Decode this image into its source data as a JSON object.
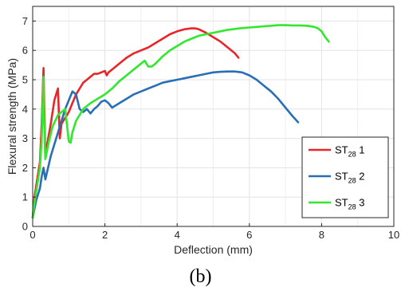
{
  "chart_data": {
    "type": "line",
    "xlabel": "Deflection (mm)",
    "ylabel": "Flexural strength (MPa)",
    "xlim": [
      0,
      10
    ],
    "ylim": [
      0,
      7.5
    ],
    "xticks": [
      "0",
      "2",
      "4",
      "6",
      "8",
      "10"
    ],
    "yticks": [
      "0",
      "1",
      "2",
      "3",
      "4",
      "5",
      "6",
      "7"
    ],
    "grid": true,
    "legend_position": "right",
    "caption": "(b)",
    "series": [
      {
        "name": "ST28 1",
        "name_main": "ST",
        "name_sub": "28",
        "name_suffix": " 1",
        "color": "#e8262a",
        "x": [
          0,
          0.05,
          0.1,
          0.15,
          0.2,
          0.25,
          0.3,
          0.32,
          0.35,
          0.4,
          0.5,
          0.6,
          0.7,
          0.75,
          0.8,
          0.9,
          1.0,
          1.1,
          1.2,
          1.3,
          1.4,
          1.5,
          1.6,
          1.7,
          1.8,
          1.9,
          2.0,
          2.05,
          2.1,
          2.2,
          2.4,
          2.6,
          2.8,
          3.0,
          3.2,
          3.4,
          3.6,
          3.8,
          4.0,
          4.2,
          4.4,
          4.5,
          4.6,
          4.8,
          5.0,
          5.2,
          5.4,
          5.6,
          5.7
        ],
        "y": [
          0.3,
          1.0,
          1.4,
          1.8,
          2.2,
          3.5,
          5.4,
          4.2,
          2.3,
          2.8,
          3.5,
          4.3,
          4.7,
          3.0,
          3.5,
          3.7,
          3.9,
          4.2,
          4.5,
          4.7,
          4.9,
          5.0,
          5.1,
          5.2,
          5.2,
          5.25,
          5.3,
          5.15,
          5.25,
          5.35,
          5.55,
          5.75,
          5.9,
          6.0,
          6.1,
          6.25,
          6.4,
          6.55,
          6.65,
          6.72,
          6.75,
          6.75,
          6.72,
          6.6,
          6.45,
          6.3,
          6.1,
          5.9,
          5.75
        ]
      },
      {
        "name": "ST28 2",
        "name_main": "ST",
        "name_sub": "28",
        "name_suffix": " 2",
        "color": "#2a6fb5",
        "x": [
          0,
          0.1,
          0.2,
          0.25,
          0.3,
          0.35,
          0.5,
          0.7,
          0.9,
          1.0,
          1.1,
          1.2,
          1.3,
          1.4,
          1.5,
          1.6,
          1.7,
          1.8,
          1.9,
          2.0,
          2.1,
          2.2,
          2.4,
          2.6,
          2.8,
          3.0,
          3.2,
          3.4,
          3.6,
          3.8,
          4.0,
          4.2,
          4.4,
          4.6,
          4.8,
          5.0,
          5.2,
          5.4,
          5.6,
          5.8,
          6.0,
          6.2,
          6.4,
          6.6,
          6.8,
          7.0,
          7.2,
          7.35
        ],
        "y": [
          0.3,
          0.9,
          1.3,
          1.7,
          2.0,
          1.6,
          2.4,
          3.2,
          4.0,
          4.3,
          4.6,
          4.5,
          4.0,
          3.9,
          4.0,
          3.85,
          4.0,
          4.1,
          4.25,
          4.3,
          4.2,
          4.05,
          4.2,
          4.35,
          4.5,
          4.6,
          4.7,
          4.8,
          4.9,
          4.95,
          5.0,
          5.05,
          5.1,
          5.15,
          5.2,
          5.25,
          5.27,
          5.28,
          5.28,
          5.25,
          5.15,
          5.0,
          4.8,
          4.6,
          4.35,
          4.05,
          3.75,
          3.55
        ]
      },
      {
        "name": "ST28 3",
        "name_main": "ST",
        "name_sub": "28",
        "name_suffix": " 3",
        "color": "#33e62e",
        "x": [
          0,
          0.05,
          0.1,
          0.15,
          0.2,
          0.25,
          0.3,
          0.32,
          0.35,
          0.45,
          0.55,
          0.7,
          0.9,
          1.0,
          1.05,
          1.1,
          1.2,
          1.4,
          1.6,
          1.8,
          2.0,
          2.2,
          2.4,
          2.6,
          2.8,
          3.0,
          3.1,
          3.2,
          3.3,
          3.4,
          3.6,
          3.8,
          4.0,
          4.2,
          4.4,
          4.6,
          4.8,
          5.0,
          5.2,
          5.4,
          5.6,
          5.8,
          6.0,
          6.2,
          6.4,
          6.6,
          6.8,
          7.0,
          7.2,
          7.4,
          7.6,
          7.8,
          7.9,
          8.0,
          8.1,
          8.2
        ],
        "y": [
          0.3,
          0.8,
          1.2,
          1.6,
          2.0,
          3.0,
          5.1,
          3.5,
          2.3,
          2.9,
          3.4,
          3.8,
          4.0,
          2.9,
          2.85,
          3.2,
          3.6,
          4.0,
          4.2,
          4.35,
          4.5,
          4.7,
          4.95,
          5.15,
          5.35,
          5.55,
          5.65,
          5.45,
          5.45,
          5.55,
          5.8,
          6.0,
          6.15,
          6.3,
          6.4,
          6.5,
          6.55,
          6.6,
          6.65,
          6.7,
          6.73,
          6.76,
          6.78,
          6.8,
          6.82,
          6.84,
          6.86,
          6.86,
          6.85,
          6.85,
          6.84,
          6.8,
          6.75,
          6.65,
          6.45,
          6.3
        ]
      }
    ]
  }
}
